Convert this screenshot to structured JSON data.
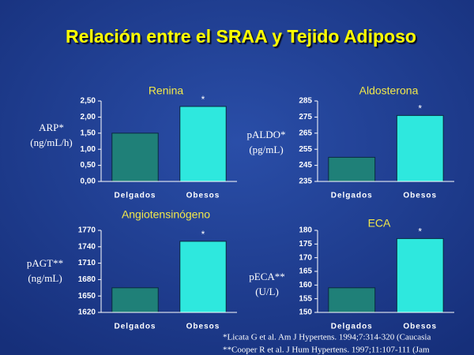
{
  "title": "Relación entre el SRAA y Tejido Adiposo",
  "footnotes": [
    "*Licata G et al. Am J Hypertens. 1994;7:314-320 (Caucasia",
    "**Cooper R et al. J Hum Hypertens. 1997;11:107-111 (Jam"
  ],
  "chart_data": [
    {
      "type": "bar",
      "title": "Renina",
      "ylabel": [
        "ARP*",
        "(ng/mL/h)"
      ],
      "categories": [
        "Delgados",
        "Obesos"
      ],
      "values": [
        1.5,
        2.33
      ],
      "colors": [
        "#1f8078",
        "#2ee8de"
      ],
      "annotations": [
        null,
        "*"
      ],
      "ylim": [
        0,
        2.5
      ],
      "yticks": [
        {
          "value": 0,
          "label": "0,00"
        },
        {
          "value": 0.5,
          "label": "0,50"
        },
        {
          "value": 1,
          "label": "1,00"
        },
        {
          "value": 1.5,
          "label": "1,50"
        },
        {
          "value": 2,
          "label": "2,00"
        },
        {
          "value": 2.5,
          "label": "2,50"
        }
      ]
    },
    {
      "type": "bar",
      "title": "Aldosterona",
      "ylabel": [
        "pALDO*",
        "(pg/mL)"
      ],
      "categories": [
        "Delgados",
        "Obesos"
      ],
      "values": [
        250,
        276
      ],
      "colors": [
        "#1f8078",
        "#2ee8de"
      ],
      "annotations": [
        null,
        "*"
      ],
      "ylim": [
        235,
        285
      ],
      "yticks": [
        235,
        245,
        255,
        265,
        275,
        285
      ]
    },
    {
      "type": "bar",
      "title": "Angiotensinógeno",
      "ylabel": [
        "pAGT**",
        "(ng/mL)"
      ],
      "categories": [
        "Delgados",
        "Obesos"
      ],
      "values": [
        1665,
        1750
      ],
      "colors": [
        "#1f8078",
        "#2ee8de"
      ],
      "annotations": [
        null,
        "*"
      ],
      "ylim": [
        1620,
        1770
      ],
      "yticks": [
        1620,
        1650,
        1680,
        1710,
        1740,
        1770
      ]
    },
    {
      "type": "bar",
      "title": "ECA",
      "ylabel": [
        "pECA**",
        "(U/L)"
      ],
      "categories": [
        "Delgados",
        "Obesos"
      ],
      "values": [
        159,
        177
      ],
      "colors": [
        "#1f8078",
        "#2ee8de"
      ],
      "annotations": [
        null,
        "*"
      ],
      "ylim": [
        150,
        180
      ],
      "yticks": [
        150,
        155,
        160,
        165,
        170,
        175,
        180
      ]
    }
  ]
}
